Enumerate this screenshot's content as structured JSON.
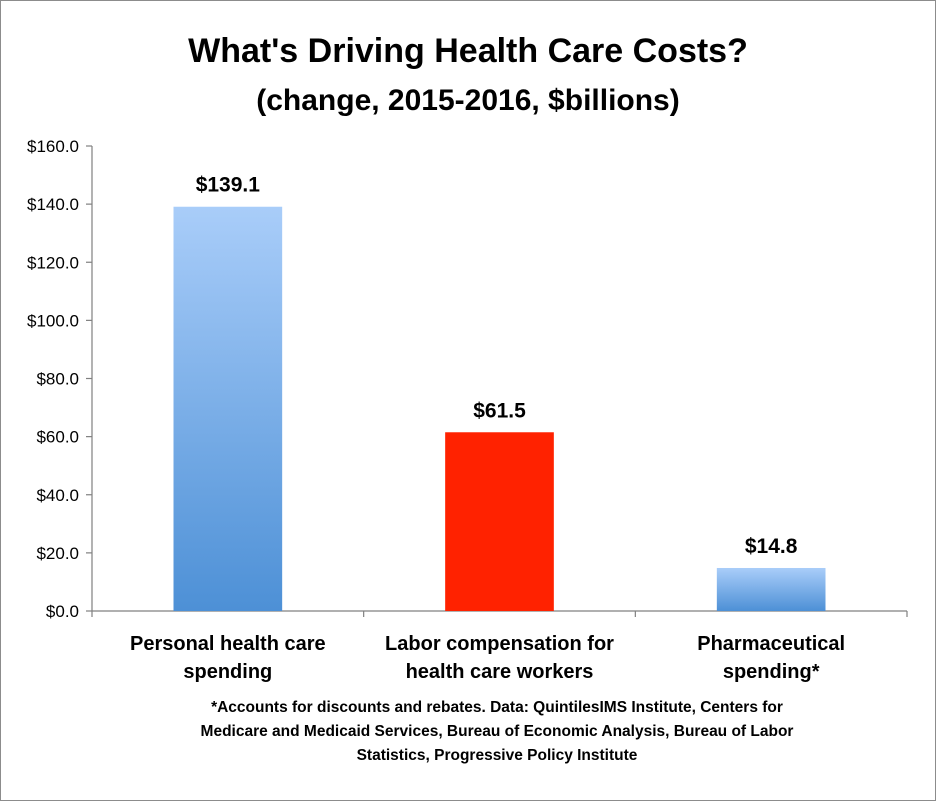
{
  "chart_data": {
    "type": "bar",
    "title": "What's Driving Health Care Costs?",
    "subtitle": "(change, 2015-2016, $billions)",
    "categories": [
      [
        "Personal health care",
        "spending"
      ],
      [
        "Labor compensation for",
        "health care workers"
      ],
      [
        "Pharmaceutical",
        "spending*"
      ]
    ],
    "values": [
      139.1,
      61.5,
      14.8
    ],
    "data_labels": [
      "$139.1",
      "$61.5",
      "$14.8"
    ],
    "bar_colors": [
      "#5b9bd5",
      "#ff2200",
      "#5b9bd5"
    ],
    "ylim": [
      0,
      160
    ],
    "yticks": [
      0,
      20,
      40,
      60,
      80,
      100,
      120,
      140,
      160
    ],
    "ytick_labels": [
      "$0.0",
      "$20.0",
      "$40.0",
      "$60.0",
      "$80.0",
      "$100.0",
      "$120.0",
      "$140.0",
      "$160.0"
    ],
    "grid": false,
    "legend": "none",
    "footnote": [
      "*Accounts for discounts and rebates. Data:  QuintilesIMS Institute, Centers for",
      "Medicare and Medicaid Services, Bureau of Economic Analysis, Bureau of Labor",
      "Statistics, Progressive Policy Institute"
    ]
  }
}
